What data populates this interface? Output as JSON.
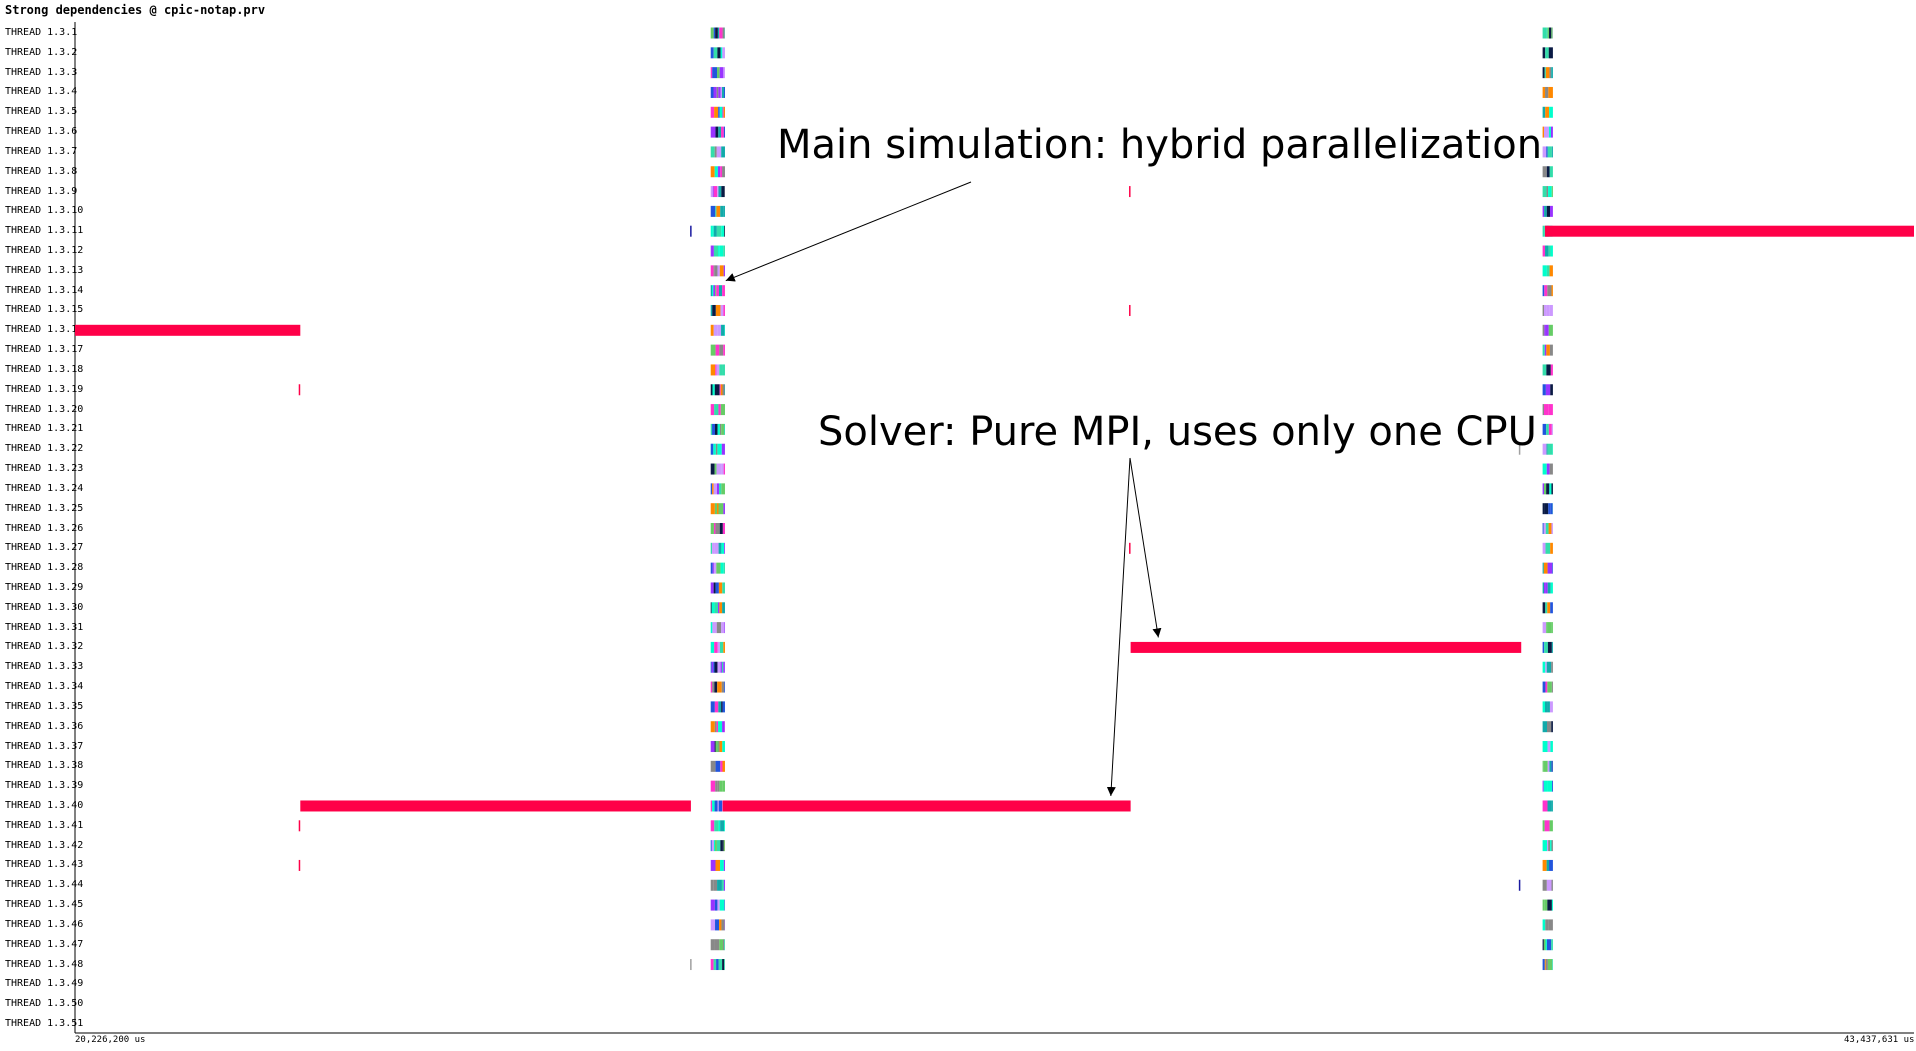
{
  "title": "Strong dependencies @ cpic-notap.prv",
  "chart_data": {
    "type": "timeline",
    "time_unit": "us",
    "x_start": 20226200,
    "x_end": 43437631,
    "x_start_label": "20,226,200 us",
    "x_end_label": "43,437,631 us",
    "threads": [
      "THREAD 1.3.1",
      "THREAD 1.3.2",
      "THREAD 1.3.3",
      "THREAD 1.3.4",
      "THREAD 1.3.5",
      "THREAD 1.3.6",
      "THREAD 1.3.7",
      "THREAD 1.3.8",
      "THREAD 1.3.9",
      "THREAD 1.3.10",
      "THREAD 1.3.11",
      "THREAD 1.3.12",
      "THREAD 1.3.13",
      "THREAD 1.3.14",
      "THREAD 1.3.15",
      "THREAD 1.3.16",
      "THREAD 1.3.17",
      "THREAD 1.3.18",
      "THREAD 1.3.19",
      "THREAD 1.3.20",
      "THREAD 1.3.21",
      "THREAD 1.3.22",
      "THREAD 1.3.23",
      "THREAD 1.3.24",
      "THREAD 1.3.25",
      "THREAD 1.3.26",
      "THREAD 1.3.27",
      "THREAD 1.3.28",
      "THREAD 1.3.29",
      "THREAD 1.3.30",
      "THREAD 1.3.31",
      "THREAD 1.3.32",
      "THREAD 1.3.33",
      "THREAD 1.3.34",
      "THREAD 1.3.35",
      "THREAD 1.3.36",
      "THREAD 1.3.37",
      "THREAD 1.3.38",
      "THREAD 1.3.39",
      "THREAD 1.3.40",
      "THREAD 1.3.41",
      "THREAD 1.3.42",
      "THREAD 1.3.43",
      "THREAD 1.3.44",
      "THREAD 1.3.45",
      "THREAD 1.3.46",
      "THREAD 1.3.47",
      "THREAD 1.3.48",
      "THREAD 1.3.49",
      "THREAD 1.3.50",
      "THREAD 1.3.51"
    ],
    "bursts": [
      {
        "thread": 15,
        "start": 20226200,
        "end": 23070000,
        "color": "#ff0048"
      },
      {
        "thread": 39,
        "start": 23070000,
        "end": 28000000,
        "color": "#ff0048"
      },
      {
        "thread": 39,
        "start": 28400000,
        "end": 33550000,
        "color": "#ff0048"
      },
      {
        "thread": 31,
        "start": 33550000,
        "end": 38480000,
        "color": "#ff0048"
      },
      {
        "thread": 10,
        "start": 38780000,
        "end": 43437631,
        "color": "#ff0048"
      }
    ],
    "markers": [
      {
        "thread": 18,
        "time": 23050000,
        "color": "#ff0048"
      },
      {
        "thread": 40,
        "time": 23050000,
        "color": "#ff0048"
      },
      {
        "thread": 42,
        "time": 23050000,
        "color": "#ff0048"
      },
      {
        "thread": 8,
        "time": 33530000,
        "color": "#ff0048"
      },
      {
        "thread": 14,
        "time": 33530000,
        "color": "#ff0048"
      },
      {
        "thread": 26,
        "time": 33530000,
        "color": "#ff0048"
      },
      {
        "thread": 10,
        "time": 27990000,
        "color": "#1a1aa0"
      },
      {
        "thread": 47,
        "time": 27990000,
        "color": "#a0a0a0"
      },
      {
        "thread": 21,
        "time": 38450000,
        "color": "#a0a0a0"
      },
      {
        "thread": 43,
        "time": 38450000,
        "color": "#1a1aa0"
      }
    ],
    "activity_regions": [
      {
        "name": "main-simulation-1",
        "start": 28250000,
        "end": 28430000,
        "threads_from": 0,
        "threads_to": 47
      },
      {
        "name": "main-simulation-2",
        "start": 38750000,
        "end": 38880000,
        "threads_from": 0,
        "threads_to": 47
      }
    ],
    "activity_colors": [
      "#00ffcc",
      "#33ddaa",
      "#2255dd",
      "#9933ff",
      "#ff33cc",
      "#0a1a44",
      "#66cc66",
      "#ff8800",
      "#888888",
      "#11aaaa",
      "#cc99ff"
    ],
    "annotations": [
      {
        "text": "Main simulation: hybrid parallelization",
        "arrows_to": [
          {
            "thread": 13,
            "time": 28440000
          }
        ]
      },
      {
        "text": "Solver: Pure MPI, uses only one CPU",
        "arrows_to": [
          {
            "thread": 39,
            "time": 33300000
          },
          {
            "thread": 31,
            "time": 33900000
          }
        ]
      }
    ]
  }
}
